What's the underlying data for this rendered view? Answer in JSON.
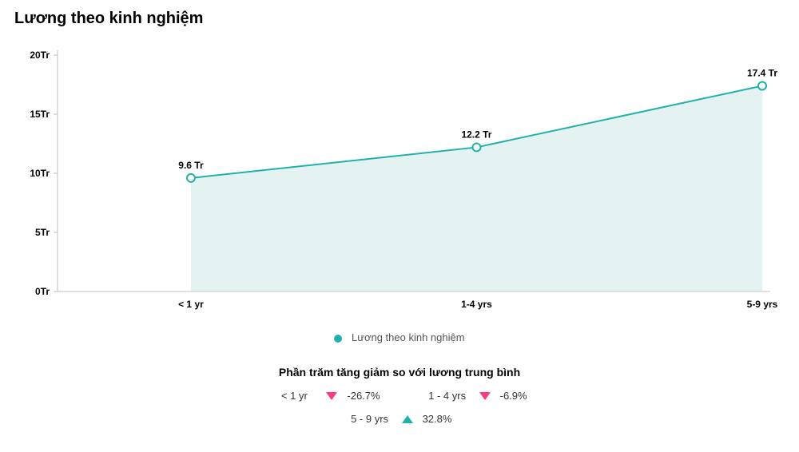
{
  "title": "Lương theo kinh nghiệm",
  "chart": {
    "type": "area-line",
    "series_name": "Lương theo kinh nghiệm",
    "series_color": "#20b2aa",
    "area_fill": "#c9e8e6",
    "area_opacity": 0.5,
    "line_width": 2,
    "marker_radius": 5,
    "marker_fill": "#ffffff",
    "background_color": "#ffffff",
    "categories": [
      "< 1 yr",
      "1-4 yrs",
      "5-9 yrs"
    ],
    "values": [
      9.6,
      12.2,
      17.4
    ],
    "value_labels": [
      "9.6 Tr",
      "12.2 Tr",
      "17.4 Tr"
    ],
    "ylim": [
      0,
      20
    ],
    "ytick_step": 5,
    "ytick_labels": [
      "0Tr",
      "5Tr",
      "10Tr",
      "15Tr",
      "20Tr"
    ],
    "axis_color": "#bfbfbf",
    "label_fontsize": 12,
    "label_fontweight": "700"
  },
  "legend": {
    "label": "Lương theo kinh nghiệm",
    "dot_color": "#20b2aa"
  },
  "percent_section": {
    "title": "Phần trăm tăng giảm so với lương trung bình",
    "items": [
      {
        "label": "< 1 yr",
        "direction": "down",
        "value": "-26.7%",
        "color": "#ff3b7b"
      },
      {
        "label": "1 - 4 yrs",
        "direction": "down",
        "value": "-6.9%",
        "color": "#ff3b7b"
      },
      {
        "label": "5 - 9 yrs",
        "direction": "up",
        "value": "32.8%",
        "color": "#20b2aa"
      }
    ]
  }
}
